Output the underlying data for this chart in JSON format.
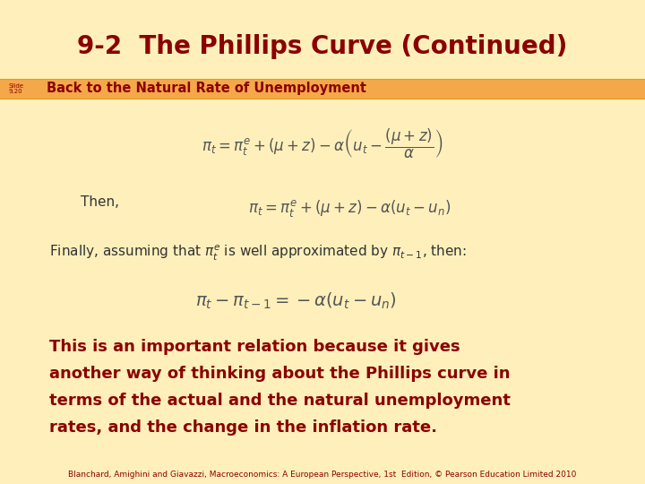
{
  "title": "9-2  The Phillips Curve (Continued)",
  "title_color": "#8B0000",
  "title_fontsize": 20,
  "bg_color": "#FFF0BB",
  "header_bg": "#F5A84A",
  "header_text": "Back to the Natural Rate of Unemployment",
  "header_text_color": "#8B0000",
  "slide_label": "Slide\n9.20",
  "header_fontsize": 10.5,
  "eq1_display": "$\\pi_t = \\pi^e_t + (\\mu + z) - \\alpha\\left(u_t - \\dfrac{(\\mu + z)}{\\alpha}\\right)$",
  "eq2_label": "Then,",
  "eq2": "$\\pi_t = \\pi^e_t + (\\mu + z) - \\alpha(u_t - u_n)$",
  "text_finally": "Finally, assuming that $\\pi^e_t$ is well approximated by $\\pi_{t-1}$, then:",
  "eq3": "$\\pi_t - \\pi_{t-1} = -\\alpha(u_t - u_n)$",
  "bold_text_line1": "This is an important relation because it gives",
  "bold_text_line2": "another way of thinking about the Phillips curve in",
  "bold_text_line3": "terms of the actual and the natural unemployment",
  "bold_text_line4": "rates, and the change in the inflation rate.",
  "bold_text_color": "#8B0000",
  "bold_text_fontsize": 13,
  "footer": "Blanchard, Amighini and Giavazzi, Macroeconomics: A European Perspective, 1st  Edition, © Pearson Education Limited 2010",
  "footer_fontsize": 6.5,
  "eq_color": "#555555",
  "eq_fontsize": 12,
  "text_color": "#333333",
  "text_fontsize": 11
}
